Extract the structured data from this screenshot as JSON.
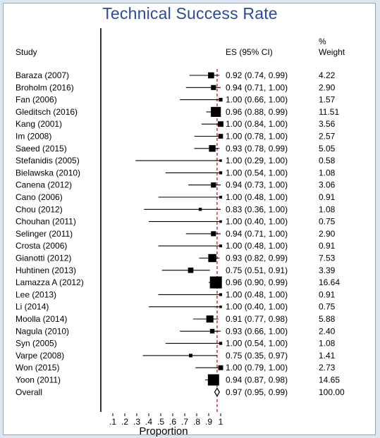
{
  "title": "Technical Success Rate",
  "columns": {
    "study": "Study",
    "es": "ES (95% CI)",
    "weight_line1": "%",
    "weight_line2": "Weight"
  },
  "chart_data": {
    "type": "forest",
    "xlabel": "Proportion",
    "xlim": [
      0,
      1
    ],
    "xticks": [
      ".1",
      ".2",
      ".3",
      ".4",
      ".5",
      ".6",
      ".7",
      ".8",
      ".9",
      "1"
    ],
    "xtick_values": [
      0.1,
      0.2,
      0.3,
      0.4,
      0.5,
      0.6,
      0.7,
      0.8,
      0.9,
      1.0
    ],
    "reference_line": 0.97,
    "colors": {
      "reference_line": "#e0211b",
      "marks": "#000000"
    },
    "studies": [
      {
        "study": "Baraza (2007)",
        "es": 0.92,
        "lo": 0.74,
        "hi": 0.99,
        "es_text": "0.92 (0.74, 0.99)",
        "weight": "4.22"
      },
      {
        "study": "Broholm (2016)",
        "es": 0.94,
        "lo": 0.71,
        "hi": 1.0,
        "es_text": "0.94 (0.71, 1.00)",
        "weight": "2.90"
      },
      {
        "study": "Fan (2006)",
        "es": 1.0,
        "lo": 0.66,
        "hi": 1.0,
        "es_text": "1.00 (0.66, 1.00)",
        "weight": "1.57"
      },
      {
        "study": "Gleditsch (2016)",
        "es": 0.96,
        "lo": 0.88,
        "hi": 0.99,
        "es_text": "0.96 (0.88, 0.99)",
        "weight": "11.51"
      },
      {
        "study": "Kang (2001)",
        "es": 1.0,
        "lo": 0.84,
        "hi": 1.0,
        "es_text": "1.00 (0.84, 1.00)",
        "weight": "3.56"
      },
      {
        "study": "Im (2008)",
        "es": 1.0,
        "lo": 0.78,
        "hi": 1.0,
        "es_text": "1.00 (0.78, 1.00)",
        "weight": "2.57"
      },
      {
        "study": "Saeed (2015)",
        "es": 0.93,
        "lo": 0.78,
        "hi": 0.99,
        "es_text": "0.93 (0.78, 0.99)",
        "weight": "5.05"
      },
      {
        "study": "Stefanidis (2005)",
        "es": 1.0,
        "lo": 0.29,
        "hi": 1.0,
        "es_text": "1.00 (0.29, 1.00)",
        "weight": "0.58"
      },
      {
        "study": "Bielawska (2010)",
        "es": 1.0,
        "lo": 0.54,
        "hi": 1.0,
        "es_text": "1.00 (0.54, 1.00)",
        "weight": "1.08"
      },
      {
        "study": "Canena (2012)",
        "es": 0.94,
        "lo": 0.73,
        "hi": 1.0,
        "es_text": "0.94 (0.73, 1.00)",
        "weight": "3.06"
      },
      {
        "study": "Cano (2006)",
        "es": 1.0,
        "lo": 0.48,
        "hi": 1.0,
        "es_text": "1.00 (0.48, 1.00)",
        "weight": "0.91"
      },
      {
        "study": "Chou (2012)",
        "es": 0.83,
        "lo": 0.36,
        "hi": 1.0,
        "es_text": "0.83 (0.36, 1.00)",
        "weight": "1.08"
      },
      {
        "study": "Chouhan (2011)",
        "es": 1.0,
        "lo": 0.4,
        "hi": 1.0,
        "es_text": "1.00 (0.40, 1.00)",
        "weight": "0.75"
      },
      {
        "study": "Selinger (2011)",
        "es": 0.94,
        "lo": 0.71,
        "hi": 1.0,
        "es_text": "0.94 (0.71, 1.00)",
        "weight": "2.90"
      },
      {
        "study": "Crosta (2006)",
        "es": 1.0,
        "lo": 0.48,
        "hi": 1.0,
        "es_text": "1.00 (0.48, 1.00)",
        "weight": "0.91"
      },
      {
        "study": "Gianotti (2012)",
        "es": 0.93,
        "lo": 0.82,
        "hi": 0.99,
        "es_text": "0.93 (0.82, 0.99)",
        "weight": "7.53"
      },
      {
        "study": "Huhtinen (2013)",
        "es": 0.75,
        "lo": 0.51,
        "hi": 0.91,
        "es_text": "0.75 (0.51, 0.91)",
        "weight": "3.39"
      },
      {
        "study": "Lamazza A (2012)",
        "es": 0.96,
        "lo": 0.9,
        "hi": 0.99,
        "es_text": "0.96 (0.90, 0.99)",
        "weight": "16.64"
      },
      {
        "study": "Lee (2013)",
        "es": 1.0,
        "lo": 0.48,
        "hi": 1.0,
        "es_text": "1.00 (0.48, 1.00)",
        "weight": "0.91"
      },
      {
        "study": "Li (2014)",
        "es": 1.0,
        "lo": 0.4,
        "hi": 1.0,
        "es_text": "1.00 (0.40, 1.00)",
        "weight": "0.75"
      },
      {
        "study": "Moolla (2014)",
        "es": 0.91,
        "lo": 0.77,
        "hi": 0.98,
        "es_text": "0.91 (0.77, 0.98)",
        "weight": "5.88"
      },
      {
        "study": "Nagula (2010)",
        "es": 0.93,
        "lo": 0.66,
        "hi": 1.0,
        "es_text": "0.93 (0.66, 1.00)",
        "weight": "2.40"
      },
      {
        "study": "Syn (2005)",
        "es": 1.0,
        "lo": 0.54,
        "hi": 1.0,
        "es_text": "1.00 (0.54, 1.00)",
        "weight": "1.08"
      },
      {
        "study": "Varpe (2008)",
        "es": 0.75,
        "lo": 0.35,
        "hi": 0.97,
        "es_text": "0.75 (0.35, 0.97)",
        "weight": "1.41"
      },
      {
        "study": "Won (2015)",
        "es": 1.0,
        "lo": 0.79,
        "hi": 1.0,
        "es_text": "1.00 (0.79, 1.00)",
        "weight": "2.73"
      },
      {
        "study": "Yoon (2011)",
        "es": 0.94,
        "lo": 0.87,
        "hi": 0.98,
        "es_text": "0.94 (0.87, 0.98)",
        "weight": "14.65"
      }
    ],
    "overall": {
      "study": "Overall",
      "es": 0.97,
      "lo": 0.95,
      "hi": 0.99,
      "es_text": "0.97 (0.95, 0.99)",
      "weight": "100.00"
    }
  }
}
